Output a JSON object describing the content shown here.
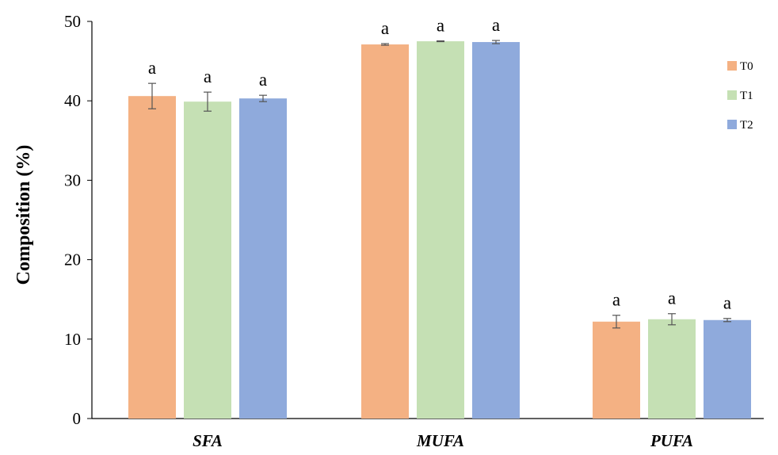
{
  "chart_data": {
    "type": "bar",
    "title": "",
    "xlabel": "",
    "ylabel": "Composition (%)",
    "ylim": [
      0,
      50
    ],
    "yticks": [
      0,
      10,
      20,
      30,
      40,
      50
    ],
    "grid": false,
    "legend_position": "right",
    "categories": [
      "SFA",
      "MUFA",
      "PUFA"
    ],
    "series": [
      {
        "name": "T0",
        "color": "#F4B183",
        "values": [
          40.6,
          47.1,
          12.2
        ],
        "errors": [
          1.6,
          0.1,
          0.8
        ]
      },
      {
        "name": "T1",
        "color": "#C5E0B4",
        "values": [
          39.9,
          47.5,
          12.5
        ],
        "errors": [
          1.2,
          0.05,
          0.7
        ]
      },
      {
        "name": "T2",
        "color": "#8FAADC",
        "values": [
          40.3,
          47.4,
          12.4
        ],
        "errors": [
          0.4,
          0.2,
          0.2
        ]
      }
    ],
    "significance_labels": [
      [
        "a",
        "a",
        "a"
      ],
      [
        "a",
        "a",
        "a"
      ],
      [
        "a",
        "a",
        "a"
      ]
    ]
  }
}
